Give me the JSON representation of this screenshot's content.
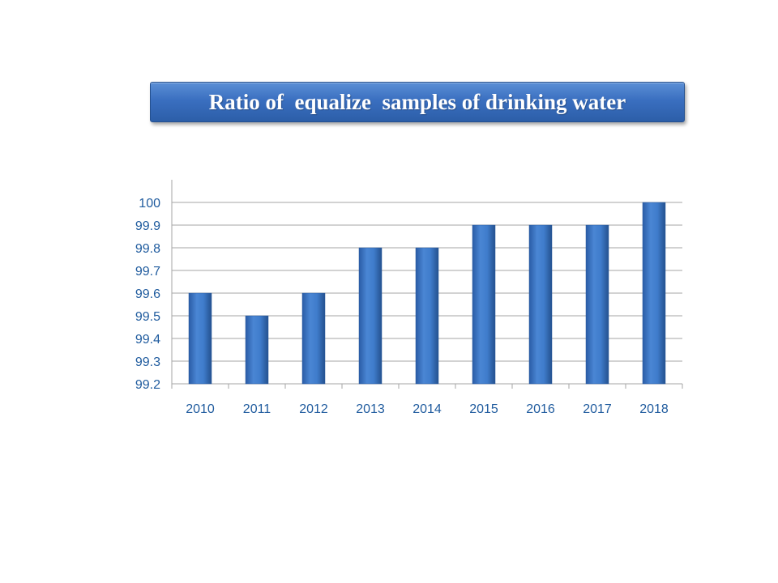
{
  "title": "Ratio of  equalize  samples of drinking water",
  "colors": {
    "bar": "#3a74c4",
    "title_bg": "#3a6fc0",
    "tick_text": "#1f5b9e",
    "grid": "#a6a6a6"
  },
  "chart_data": {
    "type": "bar",
    "title": "Ratio of  equalize  samples of drinking water",
    "xlabel": "",
    "ylabel": "",
    "categories": [
      "2010",
      "2011",
      "2012",
      "2013",
      "2014",
      "2015",
      "2016",
      "2017",
      "2018"
    ],
    "values": [
      99.6,
      99.5,
      99.6,
      99.8,
      99.8,
      99.9,
      99.9,
      99.9,
      100
    ],
    "ylim": [
      99.2,
      100
    ],
    "yticks": [
      "99.2",
      "99.3",
      "99.4",
      "99.5",
      "99.6",
      "99.7",
      "99.8",
      "99.9",
      "100"
    ],
    "grid": true,
    "legend": "none"
  }
}
